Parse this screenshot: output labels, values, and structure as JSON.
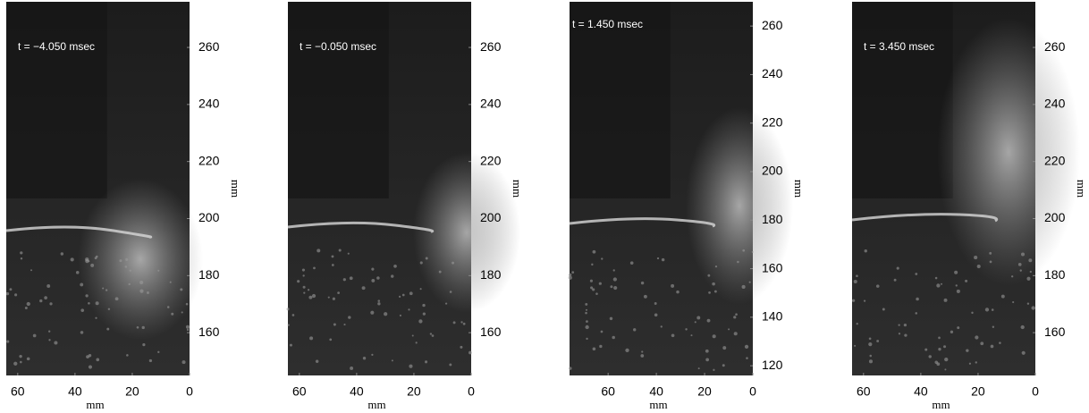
{
  "chart_data": [
    {
      "type": "image",
      "annotation": "t = −4.050 msec",
      "xlabel": "mm",
      "ylabel": "mm",
      "xlim": [
        64,
        0
      ],
      "xticks": [
        60,
        40,
        20,
        0
      ],
      "ylim": [
        145,
        276
      ],
      "yticks": [
        160,
        180,
        200,
        220,
        240,
        260
      ]
    },
    {
      "type": "image",
      "annotation": "t = −0.050 msec",
      "xlabel": "mm",
      "ylabel": "mm",
      "xlim": [
        64,
        0
      ],
      "xticks": [
        60,
        40,
        20,
        0
      ],
      "ylim": [
        145,
        276
      ],
      "yticks": [
        160,
        180,
        200,
        220,
        240,
        260
      ]
    },
    {
      "type": "image",
      "annotation": "t = 1.450 msec",
      "xlabel": "mm",
      "ylabel": "mm",
      "xlim": [
        76,
        0
      ],
      "xticks": [
        60,
        40,
        20,
        0
      ],
      "ylim": [
        116,
        270
      ],
      "yticks": [
        120,
        140,
        160,
        180,
        200,
        220,
        240,
        260
      ]
    },
    {
      "type": "image",
      "annotation": "t = 3.450 msec",
      "xlabel": "mm",
      "ylabel": "mm",
      "xlim": [
        64,
        0
      ],
      "xticks": [
        60,
        40,
        20,
        0
      ],
      "ylim": [
        145,
        276
      ],
      "yticks": [
        160,
        180,
        200,
        220,
        240,
        260
      ]
    }
  ]
}
